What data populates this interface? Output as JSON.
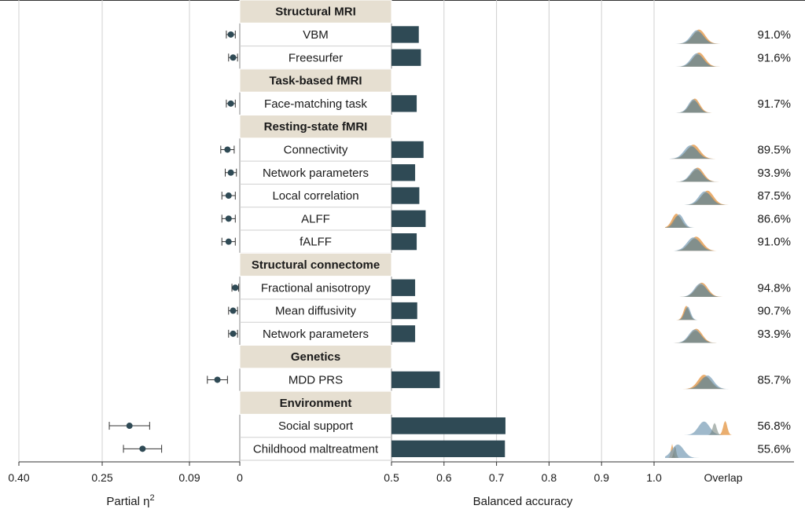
{
  "chart_data": {
    "type": "forest-bar",
    "colors": {
      "bar": "#2f4a55",
      "point": "#2f4a55",
      "header_bg": "#e6dfd1",
      "grid": "#d0d0d0",
      "dist_blue": "#7fa2ba",
      "dist_orange": "#e8a55f"
    },
    "left_panel": {
      "xlabel": "Partial η",
      "xlabel_sup": "2",
      "tick_labels": [
        "0.40",
        "0.25",
        "0.09",
        "0"
      ]
    },
    "middle_panel": {
      "xlabel": "Balanced accuracy",
      "tick_labels": [
        "0.5",
        "0.6",
        "0.7",
        "0.8",
        "0.9",
        "1.0"
      ],
      "xlim": [
        0.5,
        1.0
      ]
    },
    "right_panel": {
      "xlabel": "Overlap"
    },
    "rows": [
      {
        "kind": "header",
        "label": "Structural MRI"
      },
      {
        "kind": "item",
        "label": "VBM",
        "eta": 0.016,
        "eta_lo": 0.008,
        "eta_hi": 0.024,
        "accuracy": 0.552,
        "overlap": "91.0%",
        "mu1": 0.45,
        "mu2": 0.48,
        "w": 0.3
      },
      {
        "kind": "item",
        "label": "Freesurfer",
        "eta": 0.012,
        "eta_lo": 0.004,
        "eta_hi": 0.02,
        "accuracy": 0.556,
        "overlap": "91.6%",
        "mu1": 0.45,
        "mu2": 0.48,
        "w": 0.3
      },
      {
        "kind": "header",
        "label": "Task-based fMRI"
      },
      {
        "kind": "item",
        "label": "Face-matching task",
        "eta": 0.016,
        "eta_lo": 0.008,
        "eta_hi": 0.024,
        "accuracy": 0.548,
        "overlap": "91.7%",
        "mu1": 0.4,
        "mu2": 0.42,
        "w": 0.25
      },
      {
        "kind": "header",
        "label": "Resting-state fMRI"
      },
      {
        "kind": "item",
        "label": "Connectivity",
        "eta": 0.022,
        "eta_lo": 0.01,
        "eta_hi": 0.034,
        "accuracy": 0.561,
        "overlap": "89.5%",
        "mu1": 0.36,
        "mu2": 0.4,
        "w": 0.32
      },
      {
        "kind": "item",
        "label": "Network parameters",
        "eta": 0.016,
        "eta_lo": 0.006,
        "eta_hi": 0.026,
        "accuracy": 0.545,
        "overlap": "93.9%",
        "mu1": 0.44,
        "mu2": 0.46,
        "w": 0.3
      },
      {
        "kind": "item",
        "label": "Local correlation",
        "eta": 0.02,
        "eta_lo": 0.008,
        "eta_hi": 0.032,
        "accuracy": 0.553,
        "overlap": "87.5%",
        "mu1": 0.56,
        "mu2": 0.6,
        "w": 0.3
      },
      {
        "kind": "item",
        "label": "ALFF",
        "eta": 0.02,
        "eta_lo": 0.008,
        "eta_hi": 0.032,
        "accuracy": 0.565,
        "overlap": "86.6%",
        "mu1": 0.2,
        "mu2": 0.16,
        "w": 0.22
      },
      {
        "kind": "item",
        "label": "fALFF",
        "eta": 0.02,
        "eta_lo": 0.008,
        "eta_hi": 0.032,
        "accuracy": 0.548,
        "overlap": "91.0%",
        "mu1": 0.4,
        "mu2": 0.44,
        "w": 0.32
      },
      {
        "kind": "header",
        "label": "Structural connectome"
      },
      {
        "kind": "item",
        "label": "Fractional anisotropy",
        "eta": 0.008,
        "eta_lo": 0.002,
        "eta_hi": 0.014,
        "accuracy": 0.545,
        "overlap": "94.8%",
        "mu1": 0.5,
        "mu2": 0.52,
        "w": 0.3
      },
      {
        "kind": "item",
        "label": "Mean diffusivity",
        "eta": 0.012,
        "eta_lo": 0.004,
        "eta_hi": 0.02,
        "accuracy": 0.549,
        "overlap": "90.7%",
        "mu1": 0.32,
        "mu2": 0.3,
        "w": 0.14
      },
      {
        "kind": "item",
        "label": "Network parameters",
        "eta": 0.012,
        "eta_lo": 0.004,
        "eta_hi": 0.02,
        "accuracy": 0.545,
        "overlap": "93.9%",
        "mu1": 0.42,
        "mu2": 0.44,
        "w": 0.3
      },
      {
        "kind": "header",
        "label": "Genetics"
      },
      {
        "kind": "item",
        "label": "MDD PRS",
        "eta": 0.04,
        "eta_lo": 0.022,
        "eta_hi": 0.058,
        "accuracy": 0.592,
        "overlap": "85.7%",
        "mu1": 0.6,
        "mu2": 0.55,
        "w": 0.3
      },
      {
        "kind": "header",
        "label": "Environment"
      },
      {
        "kind": "item",
        "label": "Social support",
        "eta": 0.2,
        "eta_lo": 0.163,
        "eta_hi": 0.237,
        "accuracy": 0.717,
        "overlap": "56.8%",
        "mu1": 0.55,
        "mu2": 0.85,
        "w": 0.28,
        "w2": 0.1
      },
      {
        "kind": "item",
        "label": "Childhood maltreatment",
        "eta": 0.176,
        "eta_lo": 0.141,
        "eta_hi": 0.211,
        "accuracy": 0.716,
        "overlap": "55.6%",
        "mu1": 0.18,
        "mu2": 0.1,
        "w": 0.3,
        "w2": 0.06
      }
    ]
  }
}
